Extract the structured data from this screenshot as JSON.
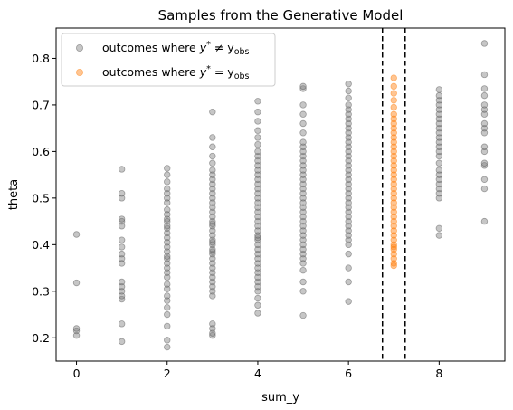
{
  "chart_data": {
    "type": "scatter",
    "title": "Samples from the Generative Model",
    "xlabel": "sum_y",
    "ylabel": "theta",
    "xlim": [
      -0.45,
      9.45
    ],
    "ylim": [
      0.15,
      0.865
    ],
    "xticks": [
      0,
      2,
      4,
      6,
      8
    ],
    "yticks": [
      0.2,
      0.3,
      0.4,
      0.5,
      0.6,
      0.7,
      0.8
    ],
    "grid": false,
    "legend_position": "top-left",
    "vlines": [
      6.75,
      7.25
    ],
    "series": [
      {
        "name_prefix": "outcomes where ",
        "name_math": "y* ≠ y_obs",
        "name_parts": [
          "y",
          "*",
          " ≠ y",
          "obs"
        ],
        "color": "#808080",
        "points": [
          [
            0,
            0.205
          ],
          [
            0,
            0.215
          ],
          [
            0,
            0.22
          ],
          [
            0,
            0.318
          ],
          [
            0,
            0.422
          ],
          [
            1,
            0.192
          ],
          [
            1,
            0.23
          ],
          [
            1,
            0.283
          ],
          [
            1,
            0.29
          ],
          [
            1,
            0.3
          ],
          [
            1,
            0.31
          ],
          [
            1,
            0.32
          ],
          [
            1,
            0.36
          ],
          [
            1,
            0.37
          ],
          [
            1,
            0.38
          ],
          [
            1,
            0.395
          ],
          [
            1,
            0.41
          ],
          [
            1,
            0.44
          ],
          [
            1,
            0.45
          ],
          [
            1,
            0.455
          ],
          [
            1,
            0.5
          ],
          [
            1,
            0.51
          ],
          [
            1,
            0.562
          ],
          [
            2,
            0.18
          ],
          [
            2,
            0.195
          ],
          [
            2,
            0.225
          ],
          [
            2,
            0.25
          ],
          [
            2,
            0.265
          ],
          [
            2,
            0.28
          ],
          [
            2,
            0.29
          ],
          [
            2,
            0.305
          ],
          [
            2,
            0.315
          ],
          [
            2,
            0.33
          ],
          [
            2,
            0.34
          ],
          [
            2,
            0.35
          ],
          [
            2,
            0.36
          ],
          [
            2,
            0.37
          ],
          [
            2,
            0.375
          ],
          [
            2,
            0.385
          ],
          [
            2,
            0.395
          ],
          [
            2,
            0.405
          ],
          [
            2,
            0.415
          ],
          [
            2,
            0.425
          ],
          [
            2,
            0.435
          ],
          [
            2,
            0.44
          ],
          [
            2,
            0.45
          ],
          [
            2,
            0.455
          ],
          [
            2,
            0.465
          ],
          [
            2,
            0.475
          ],
          [
            2,
            0.49
          ],
          [
            2,
            0.5
          ],
          [
            2,
            0.51
          ],
          [
            2,
            0.52
          ],
          [
            2,
            0.535
          ],
          [
            2,
            0.55
          ],
          [
            2,
            0.564
          ],
          [
            3,
            0.205
          ],
          [
            3,
            0.21
          ],
          [
            3,
            0.22
          ],
          [
            3,
            0.23
          ],
          [
            3,
            0.29
          ],
          [
            3,
            0.3
          ],
          [
            3,
            0.31
          ],
          [
            3,
            0.32
          ],
          [
            3,
            0.33
          ],
          [
            3,
            0.34
          ],
          [
            3,
            0.35
          ],
          [
            3,
            0.36
          ],
          [
            3,
            0.37
          ],
          [
            3,
            0.38
          ],
          [
            3,
            0.385
          ],
          [
            3,
            0.39
          ],
          [
            3,
            0.4
          ],
          [
            3,
            0.405
          ],
          [
            3,
            0.41
          ],
          [
            3,
            0.42
          ],
          [
            3,
            0.43
          ],
          [
            3,
            0.44
          ],
          [
            3,
            0.445
          ],
          [
            3,
            0.45
          ],
          [
            3,
            0.46
          ],
          [
            3,
            0.47
          ],
          [
            3,
            0.48
          ],
          [
            3,
            0.49
          ],
          [
            3,
            0.5
          ],
          [
            3,
            0.51
          ],
          [
            3,
            0.52
          ],
          [
            3,
            0.53
          ],
          [
            3,
            0.54
          ],
          [
            3,
            0.55
          ],
          [
            3,
            0.56
          ],
          [
            3,
            0.575
          ],
          [
            3,
            0.59
          ],
          [
            3,
            0.61
          ],
          [
            3,
            0.63
          ],
          [
            3,
            0.685
          ],
          [
            4,
            0.253
          ],
          [
            4,
            0.27
          ],
          [
            4,
            0.285
          ],
          [
            4,
            0.3
          ],
          [
            4,
            0.31
          ],
          [
            4,
            0.32
          ],
          [
            4,
            0.33
          ],
          [
            4,
            0.34
          ],
          [
            4,
            0.35
          ],
          [
            4,
            0.36
          ],
          [
            4,
            0.37
          ],
          [
            4,
            0.38
          ],
          [
            4,
            0.39
          ],
          [
            4,
            0.4
          ],
          [
            4,
            0.41
          ],
          [
            4,
            0.415
          ],
          [
            4,
            0.42
          ],
          [
            4,
            0.43
          ],
          [
            4,
            0.44
          ],
          [
            4,
            0.45
          ],
          [
            4,
            0.46
          ],
          [
            4,
            0.47
          ],
          [
            4,
            0.48
          ],
          [
            4,
            0.49
          ],
          [
            4,
            0.5
          ],
          [
            4,
            0.51
          ],
          [
            4,
            0.52
          ],
          [
            4,
            0.53
          ],
          [
            4,
            0.54
          ],
          [
            4,
            0.55
          ],
          [
            4,
            0.56
          ],
          [
            4,
            0.57
          ],
          [
            4,
            0.58
          ],
          [
            4,
            0.59
          ],
          [
            4,
            0.6
          ],
          [
            4,
            0.615
          ],
          [
            4,
            0.63
          ],
          [
            4,
            0.645
          ],
          [
            4,
            0.665
          ],
          [
            4,
            0.685
          ],
          [
            4,
            0.708
          ],
          [
            5,
            0.248
          ],
          [
            5,
            0.3
          ],
          [
            5,
            0.32
          ],
          [
            5,
            0.345
          ],
          [
            5,
            0.36
          ],
          [
            5,
            0.37
          ],
          [
            5,
            0.38
          ],
          [
            5,
            0.39
          ],
          [
            5,
            0.4
          ],
          [
            5,
            0.41
          ],
          [
            5,
            0.42
          ],
          [
            5,
            0.43
          ],
          [
            5,
            0.44
          ],
          [
            5,
            0.45
          ],
          [
            5,
            0.46
          ],
          [
            5,
            0.47
          ],
          [
            5,
            0.48
          ],
          [
            5,
            0.49
          ],
          [
            5,
            0.5
          ],
          [
            5,
            0.51
          ],
          [
            5,
            0.52
          ],
          [
            5,
            0.53
          ],
          [
            5,
            0.54
          ],
          [
            5,
            0.55
          ],
          [
            5,
            0.56
          ],
          [
            5,
            0.57
          ],
          [
            5,
            0.58
          ],
          [
            5,
            0.59
          ],
          [
            5,
            0.6
          ],
          [
            5,
            0.61
          ],
          [
            5,
            0.62
          ],
          [
            5,
            0.64
          ],
          [
            5,
            0.66
          ],
          [
            5,
            0.68
          ],
          [
            5,
            0.7
          ],
          [
            5,
            0.735
          ],
          [
            5,
            0.74
          ],
          [
            6,
            0.278
          ],
          [
            6,
            0.32
          ],
          [
            6,
            0.35
          ],
          [
            6,
            0.38
          ],
          [
            6,
            0.4
          ],
          [
            6,
            0.41
          ],
          [
            6,
            0.42
          ],
          [
            6,
            0.43
          ],
          [
            6,
            0.44
          ],
          [
            6,
            0.45
          ],
          [
            6,
            0.46
          ],
          [
            6,
            0.47
          ],
          [
            6,
            0.48
          ],
          [
            6,
            0.49
          ],
          [
            6,
            0.5
          ],
          [
            6,
            0.51
          ],
          [
            6,
            0.52
          ],
          [
            6,
            0.53
          ],
          [
            6,
            0.54
          ],
          [
            6,
            0.55
          ],
          [
            6,
            0.56
          ],
          [
            6,
            0.57
          ],
          [
            6,
            0.58
          ],
          [
            6,
            0.59
          ],
          [
            6,
            0.6
          ],
          [
            6,
            0.61
          ],
          [
            6,
            0.62
          ],
          [
            6,
            0.63
          ],
          [
            6,
            0.64
          ],
          [
            6,
            0.65
          ],
          [
            6,
            0.66
          ],
          [
            6,
            0.67
          ],
          [
            6,
            0.68
          ],
          [
            6,
            0.69
          ],
          [
            6,
            0.7
          ],
          [
            6,
            0.715
          ],
          [
            6,
            0.73
          ],
          [
            6,
            0.745
          ],
          [
            8,
            0.42
          ],
          [
            8,
            0.435
          ],
          [
            8,
            0.5
          ],
          [
            8,
            0.51
          ],
          [
            8,
            0.52
          ],
          [
            8,
            0.53
          ],
          [
            8,
            0.54
          ],
          [
            8,
            0.55
          ],
          [
            8,
            0.56
          ],
          [
            8,
            0.575
          ],
          [
            8,
            0.59
          ],
          [
            8,
            0.6
          ],
          [
            8,
            0.61
          ],
          [
            8,
            0.62
          ],
          [
            8,
            0.63
          ],
          [
            8,
            0.64
          ],
          [
            8,
            0.65
          ],
          [
            8,
            0.66
          ],
          [
            8,
            0.67
          ],
          [
            8,
            0.68
          ],
          [
            8,
            0.69
          ],
          [
            8,
            0.7
          ],
          [
            8,
            0.71
          ],
          [
            8,
            0.72
          ],
          [
            8,
            0.733
          ],
          [
            9,
            0.45
          ],
          [
            9,
            0.52
          ],
          [
            9,
            0.54
          ],
          [
            9,
            0.57
          ],
          [
            9,
            0.575
          ],
          [
            9,
            0.6
          ],
          [
            9,
            0.61
          ],
          [
            9,
            0.64
          ],
          [
            9,
            0.65
          ],
          [
            9,
            0.66
          ],
          [
            9,
            0.68
          ],
          [
            9,
            0.69
          ],
          [
            9,
            0.7
          ],
          [
            9,
            0.72
          ],
          [
            9,
            0.735
          ],
          [
            9,
            0.765
          ],
          [
            9,
            0.832
          ]
        ]
      },
      {
        "name_prefix": "outcomes where ",
        "name_math": "y* = y_obs",
        "name_parts": [
          "y",
          "*",
          " = y",
          "obs"
        ],
        "color": "#ff7f0e",
        "points": [
          [
            7,
            0.355
          ],
          [
            7,
            0.36
          ],
          [
            7,
            0.37
          ],
          [
            7,
            0.38
          ],
          [
            7,
            0.39
          ],
          [
            7,
            0.395
          ],
          [
            7,
            0.4
          ],
          [
            7,
            0.41
          ],
          [
            7,
            0.42
          ],
          [
            7,
            0.43
          ],
          [
            7,
            0.44
          ],
          [
            7,
            0.45
          ],
          [
            7,
            0.46
          ],
          [
            7,
            0.47
          ],
          [
            7,
            0.48
          ],
          [
            7,
            0.49
          ],
          [
            7,
            0.5
          ],
          [
            7,
            0.51
          ],
          [
            7,
            0.52
          ],
          [
            7,
            0.53
          ],
          [
            7,
            0.54
          ],
          [
            7,
            0.55
          ],
          [
            7,
            0.56
          ],
          [
            7,
            0.57
          ],
          [
            7,
            0.58
          ],
          [
            7,
            0.59
          ],
          [
            7,
            0.6
          ],
          [
            7,
            0.61
          ],
          [
            7,
            0.62
          ],
          [
            7,
            0.63
          ],
          [
            7,
            0.64
          ],
          [
            7,
            0.65
          ],
          [
            7,
            0.66
          ],
          [
            7,
            0.67
          ],
          [
            7,
            0.68
          ],
          [
            7,
            0.695
          ],
          [
            7,
            0.71
          ],
          [
            7,
            0.725
          ],
          [
            7,
            0.74
          ],
          [
            7,
            0.758
          ]
        ]
      }
    ]
  }
}
